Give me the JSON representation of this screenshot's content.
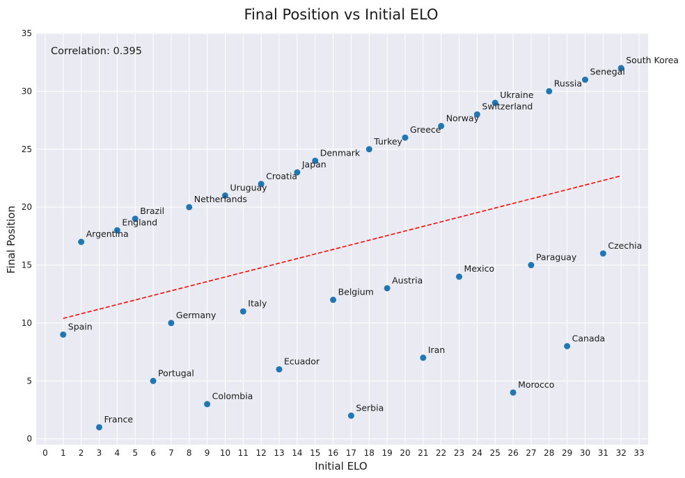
{
  "chart_data": {
    "type": "scatter",
    "title": "Final Position vs Initial ELO",
    "xlabel": "Initial ELO",
    "ylabel": "Final Position",
    "xlim": [
      -0.5,
      33.5
    ],
    "ylim": [
      -0.5,
      35
    ],
    "xticks": [
      0,
      1,
      2,
      3,
      4,
      5,
      6,
      7,
      8,
      9,
      10,
      11,
      12,
      13,
      14,
      15,
      16,
      17,
      18,
      19,
      20,
      21,
      22,
      23,
      24,
      25,
      26,
      27,
      28,
      29,
      30,
      31,
      32,
      33
    ],
    "yticks": [
      0,
      5,
      10,
      15,
      20,
      25,
      30,
      35
    ],
    "grid": true,
    "point_color": "#1f77b4",
    "trend_color": "#ff0000",
    "annotation": "Correlation: 0.395",
    "trendline": {
      "x": [
        1,
        32
      ],
      "y": [
        10.4,
        22.7
      ],
      "style": "dashed"
    },
    "points": [
      {
        "label": "Spain",
        "x": 1,
        "y": 9
      },
      {
        "label": "Argentina",
        "x": 2,
        "y": 17
      },
      {
        "label": "France",
        "x": 3,
        "y": 1
      },
      {
        "label": "England",
        "x": 4,
        "y": 18
      },
      {
        "label": "Brazil",
        "x": 5,
        "y": 19
      },
      {
        "label": "Portugal",
        "x": 6,
        "y": 5
      },
      {
        "label": "Germany",
        "x": 7,
        "y": 10
      },
      {
        "label": "Netherlands",
        "x": 8,
        "y": 20
      },
      {
        "label": "Colombia",
        "x": 9,
        "y": 3
      },
      {
        "label": "Uruguay",
        "x": 10,
        "y": 21
      },
      {
        "label": "Italy",
        "x": 11,
        "y": 11
      },
      {
        "label": "Croatia",
        "x": 12,
        "y": 22
      },
      {
        "label": "Ecuador",
        "x": 13,
        "y": 6
      },
      {
        "label": "Japan",
        "x": 14,
        "y": 23
      },
      {
        "label": "Denmark",
        "x": 15,
        "y": 24
      },
      {
        "label": "Belgium",
        "x": 16,
        "y": 12
      },
      {
        "label": "Serbia",
        "x": 17,
        "y": 2
      },
      {
        "label": "Turkey",
        "x": 18,
        "y": 25
      },
      {
        "label": "Austria",
        "x": 19,
        "y": 13
      },
      {
        "label": "Greece",
        "x": 20,
        "y": 26
      },
      {
        "label": "Iran",
        "x": 21,
        "y": 7
      },
      {
        "label": "Norway",
        "x": 22,
        "y": 27
      },
      {
        "label": "Mexico",
        "x": 23,
        "y": 14
      },
      {
        "label": "Switzerland",
        "x": 24,
        "y": 28
      },
      {
        "label": "Ukraine",
        "x": 25,
        "y": 29
      },
      {
        "label": "Morocco",
        "x": 26,
        "y": 4
      },
      {
        "label": "Paraguay",
        "x": 27,
        "y": 15
      },
      {
        "label": "Russia",
        "x": 28,
        "y": 30
      },
      {
        "label": "Canada",
        "x": 29,
        "y": 8
      },
      {
        "label": "Senegal",
        "x": 30,
        "y": 31
      },
      {
        "label": "Czechia",
        "x": 31,
        "y": 16
      },
      {
        "label": "South Korea",
        "x": 32,
        "y": 32
      }
    ]
  }
}
